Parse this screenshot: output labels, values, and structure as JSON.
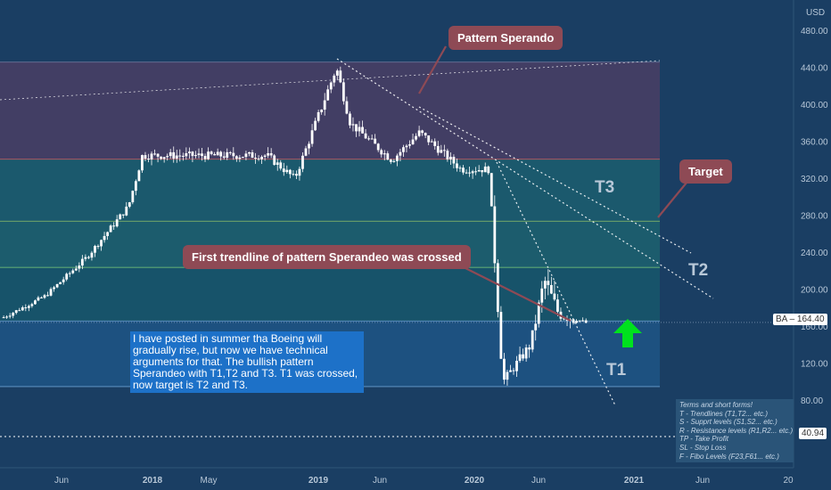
{
  "currency": "USD",
  "price_tags": {
    "symbol": "BA",
    "last": "164.40",
    "low_level": "40.94"
  },
  "callouts": {
    "pattern": "Pattern Sperando",
    "target": "Target",
    "crossed": "First trendline of pattern Sperandeo was crossed"
  },
  "trend_labels": {
    "t1": "T1",
    "t2": "T2",
    "t3": "T3"
  },
  "note_text": "I have posted in summer tha Boeing will gradually rise, but now we have technical arguments for that. The bullish pattern Sperandeo with T1,T2 and T3. T1 was crossed, now target is T2 and T3.",
  "legend": [
    "Terms and short forms!",
    "T - Trendlines (T1,T2... etc.)",
    "S - Supprt levels (S1,S2... etc.)",
    "R - Resistance levels (R1,R2... etc.)",
    "TP - Take Profit",
    "SL - Stop Loss",
    "F - Fibo Levels (F23,F61... etc.)"
  ],
  "colors": {
    "background": "#1a3e63",
    "candle": "#ffffff",
    "callout": "#8e4a55",
    "arrow": "#00e21e",
    "note": "#1d71c8",
    "zone_purple": "#453e64",
    "zone_teal": "#1c5e6e",
    "zone_teal2": "#17556a",
    "zone_blue": "#1d5282"
  },
  "chart_data": {
    "type": "candlestick",
    "symbol": "BA",
    "y_axis": {
      "unit": "USD",
      "ticks": [
        80,
        120,
        160,
        200,
        240,
        280,
        320,
        360,
        400,
        440,
        480
      ],
      "ylim": [
        22,
        500
      ]
    },
    "x_ticks": [
      "Jun",
      "2018",
      "May",
      "2019",
      "Jun",
      "2020",
      "Jun",
      "2021",
      "Jun",
      "20"
    ],
    "levels": [
      446,
      341,
      274,
      224,
      166,
      95,
      40.94
    ],
    "last_price": 164.4,
    "approx_close_path": [
      {
        "date": "2017-03",
        "close": 170
      },
      {
        "date": "2017-06",
        "close": 193
      },
      {
        "date": "2017-09",
        "close": 235
      },
      {
        "date": "2017-12",
        "close": 290
      },
      {
        "date": "2018-01",
        "close": 345
      },
      {
        "date": "2018-06",
        "close": 345
      },
      {
        "date": "2018-10",
        "close": 345
      },
      {
        "date": "2018-12",
        "close": 320
      },
      {
        "date": "2019-03",
        "close": 440
      },
      {
        "date": "2019-04",
        "close": 380
      },
      {
        "date": "2019-07",
        "close": 340
      },
      {
        "date": "2019-09",
        "close": 370
      },
      {
        "date": "2019-12",
        "close": 330
      },
      {
        "date": "2020-02",
        "close": 330
      },
      {
        "date": "2020-03",
        "close": 100
      },
      {
        "date": "2020-05",
        "close": 140
      },
      {
        "date": "2020-06",
        "close": 210
      },
      {
        "date": "2020-07",
        "close": 175
      },
      {
        "date": "2020-09",
        "close": 164
      }
    ]
  }
}
